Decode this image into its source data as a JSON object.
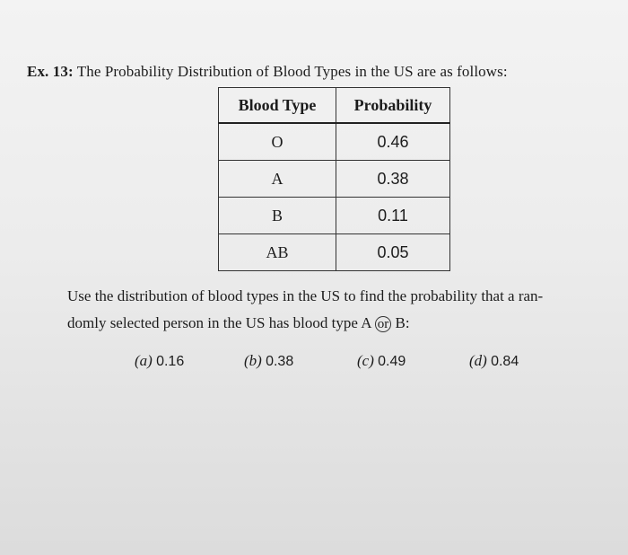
{
  "heading": {
    "label": "Ex. 13:",
    "text": "The Probability Distribution of Blood Types in the US are as follows:"
  },
  "table": {
    "headers": [
      "Blood Type",
      "Probability"
    ],
    "rows": [
      {
        "type": "O",
        "prob": "0.46"
      },
      {
        "type": "A",
        "prob": "0.38"
      },
      {
        "type": "B",
        "prob": "0.11"
      },
      {
        "type": "AB",
        "prob": "0.05"
      }
    ]
  },
  "question": {
    "line1": "Use the distribution of blood types in the US to find the probability that a ran-",
    "line2_pre": "domly selected person in the US has blood type A",
    "line2_or": "or",
    "line2_post": "B:"
  },
  "choices": [
    {
      "letter": "(a)",
      "value": "0.16"
    },
    {
      "letter": "(b)",
      "value": "0.38"
    },
    {
      "letter": "(c)",
      "value": "0.49"
    },
    {
      "letter": "(d)",
      "value": "0.84"
    }
  ]
}
